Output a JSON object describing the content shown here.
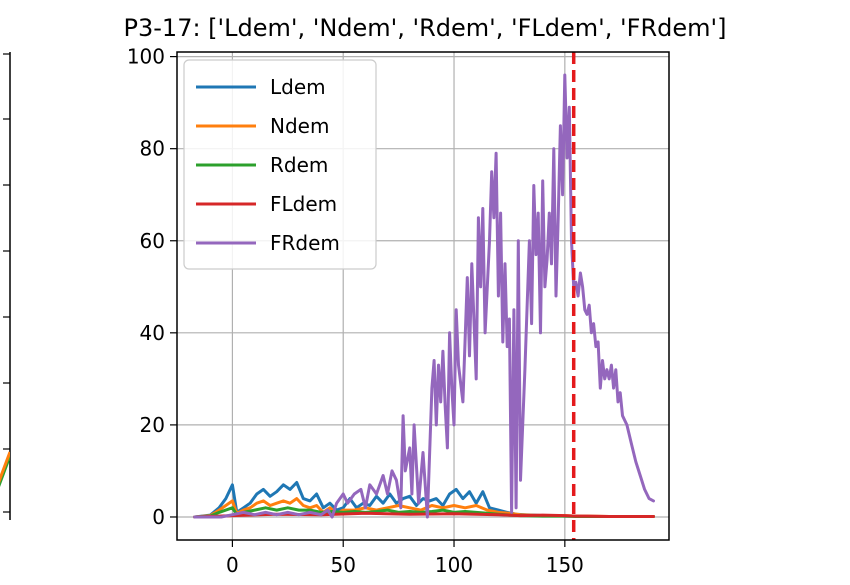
{
  "chart_data": [
    {
      "type": "line",
      "partial": true,
      "title": "",
      "xlabel": "",
      "ylabel": "",
      "series": [
        {
          "name": "",
          "color": "#2ca02c",
          "points": [
            [
              0.0,
              0.4
            ],
            [
              1.0,
              0.8
            ]
          ]
        },
        {
          "name": "",
          "color": "#ff7f0e",
          "points": [
            [
              0.0,
              0.45
            ],
            [
              1.0,
              0.85
            ]
          ]
        }
      ]
    },
    {
      "type": "line",
      "title": "P3-17: ['Ldem', 'Ndem', 'Rdem', 'FLdem', 'FRdem']",
      "xlabel": "",
      "ylabel": "",
      "xlim": [
        -25,
        197
      ],
      "ylim": [
        -5,
        101
      ],
      "xticks": [
        0,
        50,
        100,
        150
      ],
      "yticks": [
        0,
        20,
        40,
        60,
        80,
        100
      ],
      "grid": true,
      "legend_position": "top-left",
      "vline": {
        "x": 154,
        "color": "#e41a1c",
        "style": "dashed"
      },
      "series": [
        {
          "name": "Ldem",
          "color": "#1f77b4",
          "x": [
            -17,
            -10,
            -6,
            -3,
            0,
            2,
            5,
            8,
            11,
            14,
            17,
            20,
            23,
            26,
            29,
            32,
            35,
            38,
            41,
            44,
            47,
            50,
            53,
            56,
            59,
            62,
            65,
            68,
            71,
            74,
            77,
            80,
            83,
            86,
            89,
            92,
            95,
            98,
            101,
            104,
            107,
            110,
            113,
            116,
            120,
            124,
            128,
            132,
            136,
            140,
            145,
            150,
            155,
            160,
            170,
            180,
            190
          ],
          "y": [
            0,
            0.4,
            2.0,
            4.0,
            7.0,
            1.0,
            2.0,
            3.0,
            5.0,
            6.0,
            4.5,
            5.5,
            7.0,
            6.0,
            7.5,
            4.0,
            3.5,
            5.0,
            2.0,
            3.0,
            1.5,
            2.0,
            4.0,
            2.0,
            3.0,
            2.5,
            4.5,
            3.0,
            5.0,
            3.0,
            4.0,
            4.5,
            2.5,
            4.0,
            3.5,
            4.0,
            2.5,
            5.0,
            6.0,
            4.0,
            5.5,
            3.0,
            5.5,
            2.0,
            1.5,
            1.0,
            0.6,
            0.5,
            0.4,
            0.3,
            0.3,
            0.2,
            0.2,
            0.1,
            0.1,
            0.1,
            0.1
          ]
        },
        {
          "name": "Ndem",
          "color": "#ff7f0e",
          "x": [
            -17,
            -10,
            -6,
            -3,
            0,
            2,
            5,
            8,
            11,
            14,
            17,
            20,
            23,
            26,
            29,
            32,
            35,
            38,
            41,
            44,
            47,
            50,
            55,
            60,
            65,
            70,
            75,
            80,
            85,
            90,
            95,
            100,
            105,
            110,
            115,
            120,
            125,
            130,
            140,
            150,
            155,
            160,
            170,
            180,
            190
          ],
          "y": [
            0,
            0.3,
            1.5,
            2.5,
            3.5,
            0.8,
            1.5,
            2.0,
            3.0,
            3.5,
            2.5,
            3.0,
            3.5,
            3.0,
            4.0,
            2.5,
            2.0,
            2.5,
            1.0,
            2.0,
            0.8,
            1.5,
            1.5,
            2.0,
            1.5,
            2.0,
            2.5,
            2.0,
            1.5,
            2.5,
            2.0,
            2.5,
            2.0,
            2.5,
            1.5,
            1.0,
            0.8,
            0.5,
            0.3,
            0.3,
            0.2,
            0.2,
            0.1,
            0.1,
            0.1
          ]
        },
        {
          "name": "Rdem",
          "color": "#2ca02c",
          "x": [
            -17,
            -10,
            -6,
            -3,
            0,
            2,
            5,
            10,
            15,
            20,
            25,
            30,
            35,
            40,
            45,
            50,
            55,
            60,
            65,
            70,
            75,
            80,
            85,
            90,
            95,
            100,
            105,
            110,
            115,
            120,
            125,
            130,
            140,
            150,
            155,
            160,
            170,
            180,
            190
          ],
          "y": [
            0,
            0.2,
            1.0,
            1.5,
            2.0,
            0.5,
            1.0,
            1.5,
            2.0,
            1.5,
            2.0,
            1.5,
            1.5,
            1.0,
            1.2,
            1.0,
            1.2,
            1.0,
            1.2,
            1.5,
            1.0,
            1.2,
            1.0,
            1.2,
            1.5,
            1.0,
            1.2,
            1.0,
            0.8,
            0.6,
            0.4,
            0.3,
            0.2,
            0.2,
            0.1,
            0.1,
            0.1,
            0.1,
            0.1
          ]
        },
        {
          "name": "FLdem",
          "color": "#d62728",
          "x": [
            -17,
            0,
            20,
            40,
            60,
            80,
            100,
            120,
            130,
            140,
            150,
            155,
            160,
            170,
            180,
            190
          ],
          "y": [
            0,
            0.3,
            0.6,
            0.5,
            0.8,
            0.6,
            0.7,
            0.5,
            0.3,
            0.4,
            0.3,
            0.2,
            0.2,
            0.1,
            0.1,
            0.1
          ]
        },
        {
          "name": "FRdem",
          "color": "#9467bd",
          "x": [
            -17,
            -5,
            0,
            5,
            10,
            15,
            20,
            25,
            30,
            35,
            40,
            43,
            45,
            47,
            50,
            52,
            55,
            58,
            60,
            62,
            65,
            68,
            70,
            72,
            74,
            76,
            77,
            78,
            80,
            81,
            82,
            84,
            86,
            88,
            90,
            91,
            92,
            93,
            94,
            95,
            96,
            97,
            98,
            99,
            100,
            101,
            102,
            104,
            106,
            107,
            108,
            110,
            111,
            112,
            113,
            114,
            116,
            117,
            118,
            119,
            120,
            121,
            122,
            123,
            124,
            125,
            126,
            127,
            128,
            129,
            130,
            131,
            132,
            134,
            135,
            136,
            137,
            138,
            139,
            140,
            141,
            142,
            143,
            144,
            145,
            146,
            147,
            148,
            149,
            150,
            151,
            152,
            153,
            154,
            155,
            156,
            157,
            158,
            159,
            160,
            161,
            162,
            163,
            164,
            165,
            166,
            167,
            168,
            169,
            170,
            171,
            172,
            173,
            174,
            175,
            176,
            178,
            180,
            182,
            184,
            186,
            188,
            190
          ],
          "y": [
            0,
            0,
            0.5,
            1.0,
            0.5,
            1.0,
            0.5,
            1.0,
            0.5,
            1.0,
            0.5,
            1.5,
            0.0,
            3.0,
            5.0,
            3.0,
            5.0,
            6.0,
            2.0,
            7.0,
            5.0,
            9.0,
            5.0,
            10.0,
            8.0,
            2.0,
            22.0,
            10.0,
            15.0,
            5.0,
            20.0,
            3.0,
            14.0,
            0.0,
            28.0,
            34.0,
            20.0,
            33.0,
            25.0,
            36.0,
            24.0,
            15.0,
            40.0,
            28.0,
            20.0,
            45.0,
            33.0,
            25.0,
            52.0,
            35.0,
            55.0,
            30.0,
            65.0,
            50.0,
            67.0,
            40.0,
            60.0,
            75.0,
            65.0,
            79.0,
            48.0,
            66.0,
            38.0,
            55.0,
            37.0,
            43.0,
            1.0,
            45.0,
            2.0,
            60.0,
            8.0,
            20.0,
            32.0,
            60.0,
            42.0,
            72.0,
            57.0,
            66.0,
            40.0,
            73.0,
            50.0,
            56.0,
            66.0,
            55.0,
            80.0,
            48.0,
            65.0,
            85.0,
            70.0,
            96.0,
            78.0,
            89.0,
            60.0,
            50.0,
            51.0,
            48.0,
            53.0,
            50.0,
            45.0,
            44.0,
            46.0,
            40.0,
            42.0,
            37.0,
            38.0,
            28.0,
            34.0,
            30.0,
            32.0,
            30.0,
            33.0,
            28.0,
            32.0,
            25.0,
            27.0,
            22.0,
            20.0,
            16.0,
            12.0,
            9.0,
            6.0,
            4.0,
            3.5
          ]
        }
      ]
    }
  ]
}
